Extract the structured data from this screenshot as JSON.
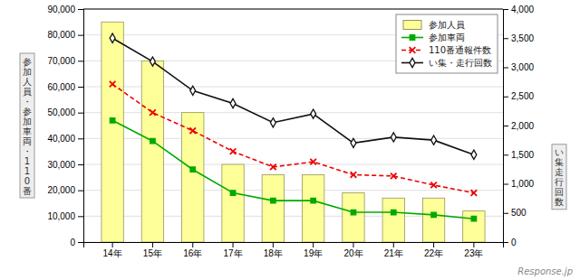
{
  "chart_data": {
    "type": "bar",
    "categories": [
      "14年",
      "15年",
      "16年",
      "17年",
      "18年",
      "19年",
      "20年",
      "21年",
      "22年",
      "23年"
    ],
    "series": [
      {
        "name": "参加人員",
        "type": "bar",
        "color": "#FFFF99",
        "values": [
          85000,
          70000,
          50000,
          30000,
          26000,
          26000,
          19000,
          17000,
          17000,
          12000
        ]
      },
      {
        "name": "参加車両",
        "type": "line",
        "color": "#00AA00",
        "marker": "square",
        "values": [
          47000,
          39000,
          28000,
          19000,
          16000,
          16000,
          11500,
          11500,
          10500,
          9000
        ]
      },
      {
        "name": "110番通報件数",
        "type": "line",
        "color": "#EE0000",
        "marker": "x",
        "line_style": "dashed",
        "values": [
          61000,
          50000,
          43000,
          35000,
          29000,
          31000,
          26000,
          25500,
          22000,
          19000
        ]
      },
      {
        "name": "い集・走行回数",
        "type": "line",
        "color": "#111111",
        "marker": "diamond",
        "axis": "y2",
        "values": [
          3500,
          3100,
          2600,
          2380,
          2050,
          2200,
          1700,
          1800,
          1750,
          1500
        ]
      }
    ],
    "ylabel": "参\n加\n人\n員\n・\n参\n加\n車\n両\n・\n1\n1\n0\n番",
    "y2label": "い\n集\n走\n行\n回\n数",
    "ylim": [
      0,
      90000
    ],
    "yticks": [
      0,
      {
        "value": 10000,
        "label": "10,000"
      },
      {
        "value": 20000,
        "label": "20,000"
      },
      {
        "value": 30000,
        "label": "30,000"
      },
      {
        "value": 40000,
        "label": "40,000"
      },
      {
        "value": 50000,
        "label": "50,000"
      },
      {
        "value": 60000,
        "label": "60,000"
      },
      {
        "value": 70000,
        "label": "70,000"
      },
      {
        "value": 80000,
        "label": "80,000"
      },
      {
        "value": 90000,
        "label": "90,000"
      }
    ],
    "y2lim": [
      0,
      4000
    ],
    "y2ticks": [
      0,
      500,
      {
        "value": 1000,
        "label": "1,000"
      },
      {
        "value": 1500,
        "label": "1,500"
      },
      {
        "value": 2000,
        "label": "2,000"
      },
      {
        "value": 2500,
        "label": "2,500"
      },
      {
        "value": 3000,
        "label": "3,000"
      },
      {
        "value": 3500,
        "label": "3,500"
      },
      {
        "value": 4000,
        "label": "4,000"
      }
    ],
    "grid": true,
    "legend": "upper right",
    "annotations": [
      "Response.jp"
    ]
  }
}
